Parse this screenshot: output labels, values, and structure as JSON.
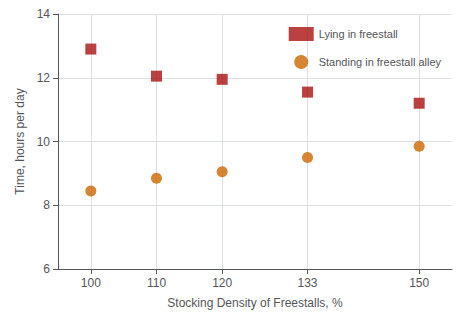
{
  "chart_data": {
    "type": "scatter",
    "x": [
      100,
      110,
      120,
      133,
      150
    ],
    "series": [
      {
        "name": "Lying in freestall",
        "color": "#aa1111",
        "marker": "square",
        "values": [
          12.9,
          12.05,
          11.95,
          11.55,
          11.2
        ]
      },
      {
        "name": "Standing in freestall alley",
        "color": "#cc6600",
        "marker": "circle",
        "values": [
          8.45,
          8.85,
          9.05,
          9.5,
          9.85
        ]
      }
    ],
    "xlabel": "Stocking Density of Freestalls, %",
    "ylabel": "Time, hours per day",
    "xlim": [
      95,
      155
    ],
    "xticks": [
      100,
      110,
      120,
      133,
      150
    ],
    "ylim": [
      6,
      14
    ],
    "yticks": [
      6,
      8,
      10,
      12,
      14
    ],
    "grid": true,
    "legend": "upper right"
  }
}
